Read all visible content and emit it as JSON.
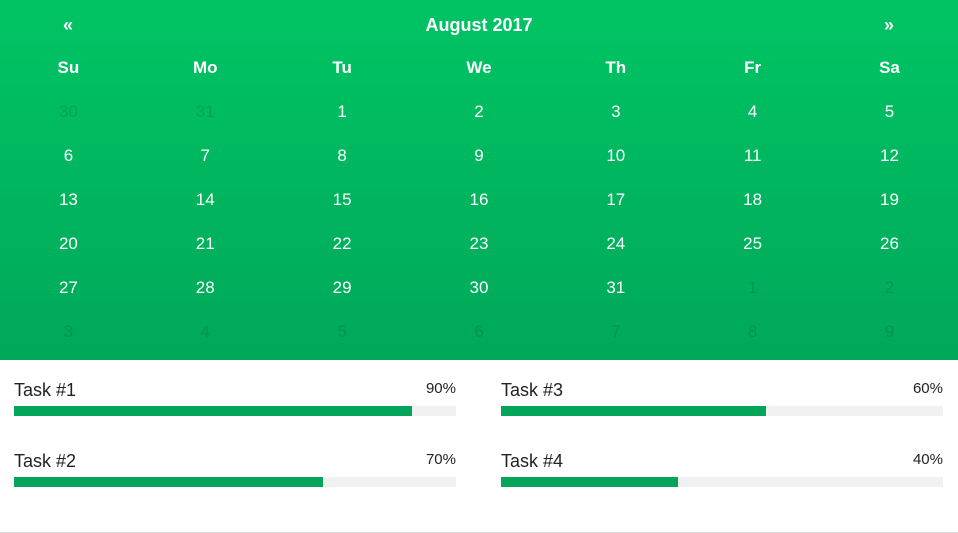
{
  "calendar": {
    "title": "August 2017",
    "prev_label": "«",
    "next_label": "»",
    "weekdays": [
      "Su",
      "Mo",
      "Tu",
      "We",
      "Th",
      "Fr",
      "Sa"
    ],
    "weeks": [
      [
        {
          "d": "30",
          "muted": true
        },
        {
          "d": "31",
          "muted": true
        },
        {
          "d": "1"
        },
        {
          "d": "2"
        },
        {
          "d": "3"
        },
        {
          "d": "4"
        },
        {
          "d": "5"
        }
      ],
      [
        {
          "d": "6"
        },
        {
          "d": "7"
        },
        {
          "d": "8"
        },
        {
          "d": "9"
        },
        {
          "d": "10"
        },
        {
          "d": "11"
        },
        {
          "d": "12"
        }
      ],
      [
        {
          "d": "13"
        },
        {
          "d": "14"
        },
        {
          "d": "15"
        },
        {
          "d": "16"
        },
        {
          "d": "17"
        },
        {
          "d": "18"
        },
        {
          "d": "19"
        }
      ],
      [
        {
          "d": "20"
        },
        {
          "d": "21"
        },
        {
          "d": "22"
        },
        {
          "d": "23"
        },
        {
          "d": "24"
        },
        {
          "d": "25"
        },
        {
          "d": "26"
        }
      ],
      [
        {
          "d": "27"
        },
        {
          "d": "28"
        },
        {
          "d": "29"
        },
        {
          "d": "30"
        },
        {
          "d": "31"
        },
        {
          "d": "1",
          "muted": true
        },
        {
          "d": "2",
          "muted": true
        }
      ],
      [
        {
          "d": "3",
          "muted": true
        },
        {
          "d": "4",
          "muted": true
        },
        {
          "d": "5",
          "muted": true
        },
        {
          "d": "6",
          "muted": true
        },
        {
          "d": "7",
          "muted": true
        },
        {
          "d": "8",
          "muted": true
        },
        {
          "d": "9",
          "muted": true
        }
      ]
    ]
  },
  "tasks": [
    {
      "label": "Task #1",
      "percent_label": "90%",
      "progress": 0.9
    },
    {
      "label": "Task #3",
      "percent_label": "60%",
      "progress": 0.6
    },
    {
      "label": "Task #2",
      "percent_label": "70%",
      "progress": 0.7
    },
    {
      "label": "Task #4",
      "percent_label": "40%",
      "progress": 0.4
    }
  ],
  "colors": {
    "calendar_top": "#00c464",
    "calendar_bottom": "#00a85a",
    "progress_fill": "#04a55a",
    "progress_track": "#f1f1f1"
  }
}
